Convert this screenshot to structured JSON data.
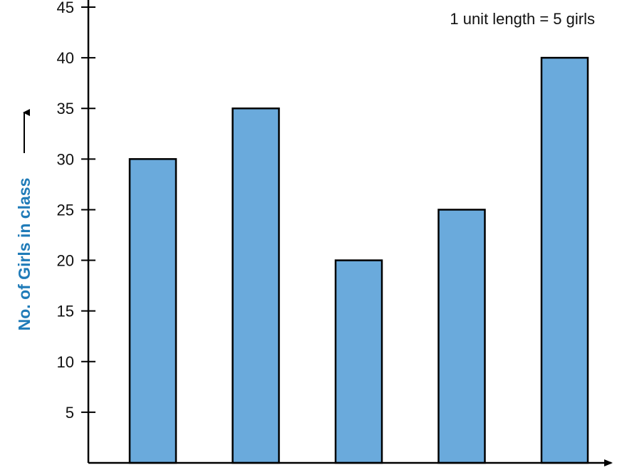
{
  "chart_data": {
    "type": "bar",
    "categories": [
      "",
      "",
      "",
      "",
      ""
    ],
    "values": [
      30,
      35,
      20,
      25,
      40
    ],
    "ylabel": "No. of Girls in class",
    "xlabel": "",
    "ylim": [
      0,
      45
    ],
    "yticks": [
      5,
      10,
      15,
      20,
      25,
      30,
      35,
      40,
      45
    ],
    "annotation": "1 unit length = 5 girls",
    "grid": false,
    "bar_color": "#6aaadc",
    "bar_edge_color": "#000000",
    "ylabel_color": "#1f7bb8"
  }
}
